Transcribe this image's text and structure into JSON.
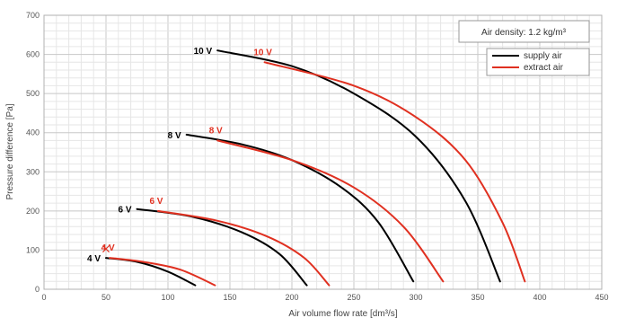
{
  "chart_data": {
    "type": "line",
    "title": "",
    "xlabel": "Air volume flow rate [dm³/s]",
    "ylabel": "Pressure difference [Pa]",
    "xlim": [
      0,
      450
    ],
    "ylim": [
      0,
      700
    ],
    "xticks": [
      0,
      50,
      100,
      150,
      200,
      250,
      300,
      350,
      400,
      450
    ],
    "yticks": [
      0,
      100,
      200,
      300,
      400,
      500,
      600,
      700
    ],
    "grid": true,
    "legend": {
      "placement": "top-right",
      "entries": [
        {
          "label": "supply air",
          "color": "#000000"
        },
        {
          "label": "extract air",
          "color": "#e03020"
        }
      ]
    },
    "annotation": "Air density:  1.2 kg/m³",
    "series": [
      {
        "name": "supply air",
        "label": "10 V",
        "color": "#000000",
        "points": [
          [
            140,
            610
          ],
          [
            200,
            570
          ],
          [
            250,
            500
          ],
          [
            300,
            390
          ],
          [
            340,
            225
          ],
          [
            368,
            20
          ]
        ]
      },
      {
        "name": "extract air",
        "label": "10 V",
        "color": "#e03020",
        "points": [
          [
            178,
            580
          ],
          [
            250,
            520
          ],
          [
            300,
            440
          ],
          [
            340,
            330
          ],
          [
            370,
            170
          ],
          [
            388,
            20
          ]
        ]
      },
      {
        "name": "supply air",
        "label": "8 V",
        "color": "#000000",
        "points": [
          [
            115,
            395
          ],
          [
            160,
            370
          ],
          [
            200,
            330
          ],
          [
            240,
            260
          ],
          [
            270,
            170
          ],
          [
            298,
            20
          ]
        ]
      },
      {
        "name": "extract air",
        "label": "8 V",
        "color": "#e03020",
        "points": [
          [
            140,
            380
          ],
          [
            200,
            330
          ],
          [
            250,
            260
          ],
          [
            290,
            160
          ],
          [
            322,
            20
          ]
        ]
      },
      {
        "name": "supply air",
        "label": "6 V",
        "color": "#000000",
        "points": [
          [
            75,
            205
          ],
          [
            120,
            185
          ],
          [
            160,
            145
          ],
          [
            190,
            90
          ],
          [
            212,
            10
          ]
        ]
      },
      {
        "name": "extract air",
        "label": "6 V",
        "color": "#e03020",
        "points": [
          [
            92,
            200
          ],
          [
            140,
            175
          ],
          [
            180,
            135
          ],
          [
            210,
            80
          ],
          [
            230,
            10
          ]
        ]
      },
      {
        "name": "supply air",
        "label": "4 V",
        "color": "#000000",
        "points": [
          [
            50,
            80
          ],
          [
            75,
            70
          ],
          [
            100,
            45
          ],
          [
            122,
            10
          ]
        ]
      },
      {
        "name": "extract air",
        "label": "4 V",
        "color": "#e03020",
        "points": [
          [
            53,
            80
          ],
          [
            80,
            70
          ],
          [
            110,
            50
          ],
          [
            138,
            10
          ]
        ]
      }
    ],
    "markers": [
      {
        "x": 50,
        "y": 105,
        "symbol": "×",
        "color": "#e03020"
      }
    ]
  }
}
